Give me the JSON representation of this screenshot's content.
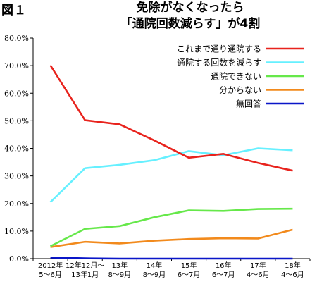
{
  "figure_label": "図１",
  "title_line1": "免除がなくなったら",
  "title_line2": "「通院回数減らす」が4割",
  "chart_data": {
    "type": "line",
    "title": "免除がなくなったら「通院回数減らす」が4割",
    "categories": [
      [
        "2012年",
        "5～6月"
      ],
      [
        "12年12月～",
        "13年1月"
      ],
      [
        "13年",
        "8～9月"
      ],
      [
        "14年",
        "8～9月"
      ],
      [
        "15年",
        "6～7月"
      ],
      [
        "16年",
        "6～7月"
      ],
      [
        "17年",
        "4～6月"
      ],
      [
        "18年",
        "4～6月"
      ]
    ],
    "ylim": [
      0,
      80
    ],
    "ytick_labels": [
      "0.0%",
      "10.0%",
      "20.0%",
      "30.0%",
      "40.0%",
      "50.0%",
      "60.0%",
      "70.0%",
      "80.0%"
    ],
    "grid": false,
    "legend_position": "top-right",
    "series": [
      {
        "name": "これまで通り通院する",
        "color": "#e8231d",
        "values": [
          70.1,
          50.2,
          48.7,
          42.9,
          36.6,
          38.0,
          34.7,
          31.9
        ]
      },
      {
        "name": "通院する回数を減らす",
        "color": "#66f0ff",
        "values": [
          20.5,
          32.8,
          34.0,
          35.7,
          39.0,
          37.5,
          40.0,
          39.3
        ]
      },
      {
        "name": "通院できない",
        "color": "#66e84a",
        "values": [
          4.5,
          10.8,
          11.8,
          15.0,
          17.5,
          17.3,
          18.0,
          18.1
        ]
      },
      {
        "name": "分からない",
        "color": "#f28a1c",
        "values": [
          4.2,
          6.1,
          5.5,
          6.5,
          7.1,
          7.4,
          7.3,
          10.5
        ]
      },
      {
        "name": "無回答",
        "color": "#0a16c8",
        "values": [
          0.4,
          0.1,
          0.0,
          0.0,
          0.0,
          0.0,
          0.0,
          0.0
        ]
      }
    ]
  }
}
